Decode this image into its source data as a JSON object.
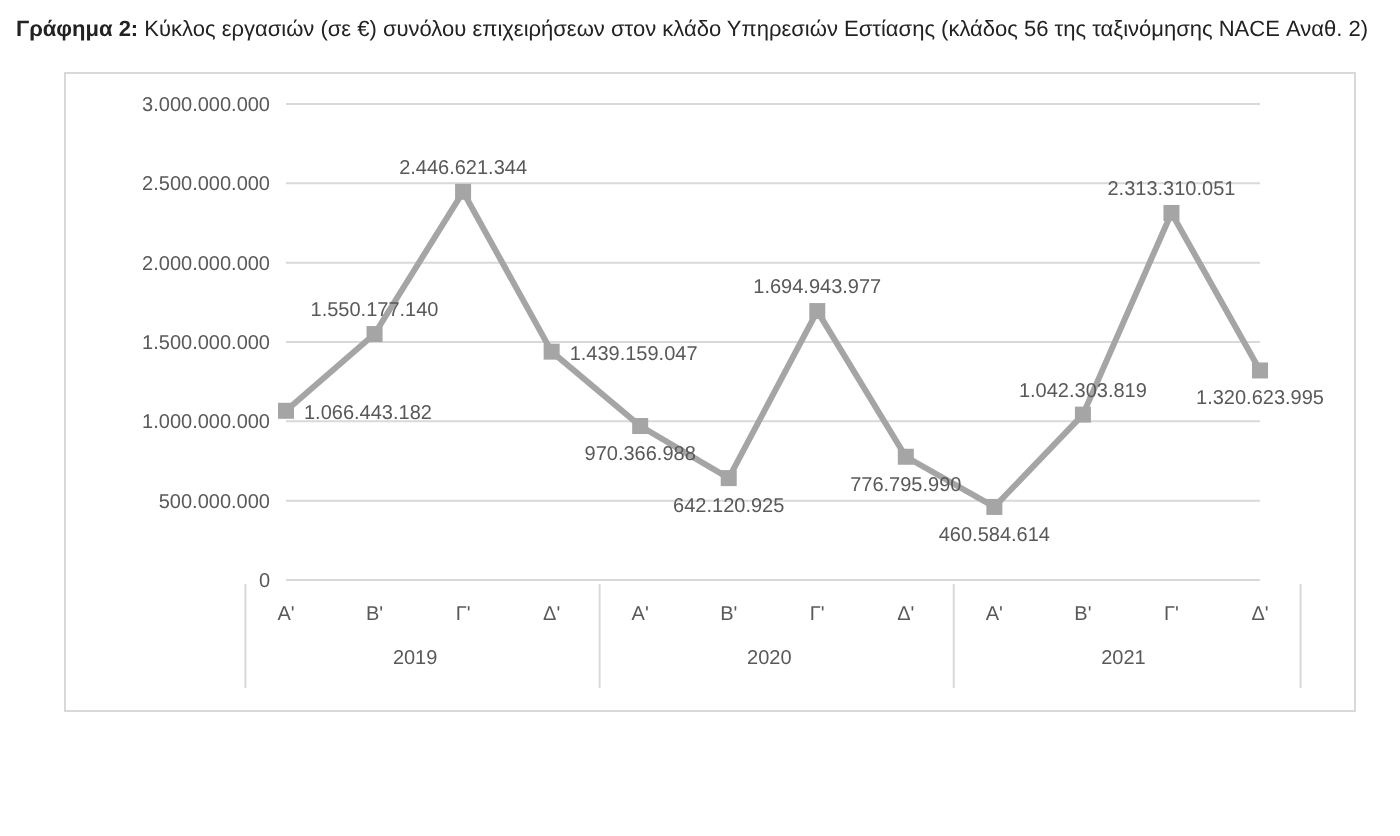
{
  "chart_data": {
    "type": "line",
    "title": "Γράφημα 2: Κύκλος εργασιών (σε €) συνόλου επιχειρήσεων στον κλάδο Υπηρεσιών Εστίασης (κλάδος 56 της ταξινόμησης NACE Αναθ. 2)",
    "categories": [
      "Α'",
      "Β'",
      "Γ'",
      "Δ'",
      "Α'",
      "Β'",
      "Γ'",
      "Δ'",
      "Α'",
      "Β'",
      "Γ'",
      "Δ'"
    ],
    "annotations": [
      "2019",
      "2020",
      "2021"
    ],
    "series": [
      {
        "color": "#a5a5a5",
        "values": [
          1066443182,
          1550177140,
          2446621344,
          1439159047,
          970366988,
          642120925,
          1694943977,
          776795990,
          460584614,
          1042303819,
          2313310051,
          1320623995
        ],
        "value_labels": [
          "1.066.443.182",
          "1.550.177.140",
          "2.446.621.344",
          "1.439.159.047",
          "970.366.988",
          "642.120.925",
          "1.694.943.977",
          "776.795.990",
          "460.584.614",
          "1.042.303.819",
          "2.313.310.051",
          "1.320.623.995"
        ]
      }
    ],
    "ylim": [
      0,
      3000000000
    ],
    "yticks": [
      0,
      {
        "value": 500000000,
        "label": "500.000.000"
      },
      {
        "value": 1000000000,
        "label": "1.000.000.000"
      },
      {
        "value": 1500000000,
        "label": "1.500.000.000"
      },
      {
        "value": 2000000000,
        "label": "2.000.000.000"
      },
      {
        "value": 2500000000,
        "label": "2.500.000.000"
      },
      {
        "value": 3000000000,
        "label": "3.000.000.000"
      }
    ],
    "grid": "y",
    "marker": "square",
    "line_style": "solid"
  }
}
